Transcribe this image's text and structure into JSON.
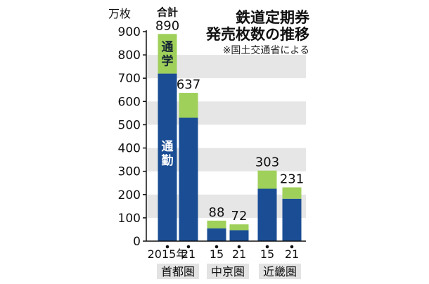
{
  "chart_data": {
    "type": "bar",
    "stacked": true,
    "title": "鉄道定期券\n発売枚数の推移",
    "source": "※国土交通省による",
    "ylabel": "万枚",
    "ylim": [
      0,
      900
    ],
    "yticks": [
      0,
      100,
      200,
      300,
      400,
      500,
      600,
      700,
      800,
      900
    ],
    "grid": "alternating-bands",
    "total_prefix": "合計",
    "groups": [
      {
        "name": "首都圏",
        "bars": [
          {
            "x_label": "2015年",
            "commute": 720,
            "school": 170,
            "total": 890,
            "total_label": "890"
          },
          {
            "x_label": "21",
            "commute": 530,
            "school": 107,
            "total": 637,
            "total_label": "637"
          }
        ]
      },
      {
        "name": "中京圏",
        "bars": [
          {
            "x_label": "15",
            "commute": 55,
            "school": 33,
            "total": 88,
            "total_label": "88"
          },
          {
            "x_label": "21",
            "commute": 47,
            "school": 25,
            "total": 72,
            "total_label": "72"
          }
        ]
      },
      {
        "name": "近畿圏",
        "bars": [
          {
            "x_label": "15",
            "commute": 225,
            "school": 78,
            "total": 303,
            "total_label": "303"
          },
          {
            "x_label": "21",
            "commute": 182,
            "school": 49,
            "total": 231,
            "total_label": "231"
          }
        ]
      }
    ],
    "series": [
      {
        "name": "通勤",
        "key": "commute",
        "color": "#1a4d94"
      },
      {
        "name": "通学",
        "key": "school",
        "color": "#9fd05a"
      }
    ],
    "band_color": "#e6e6e6",
    "group_label_bg": "#e3e3e3"
  }
}
